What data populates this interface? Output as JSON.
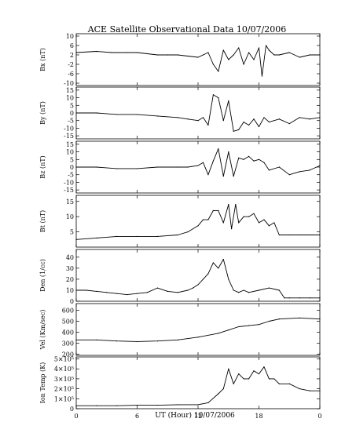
{
  "chart_data": {
    "type": "line",
    "title": "ACE Satellite Observational Data   10/07/2006",
    "xlabel": "UT (Hour)   10/07/2006",
    "xticks": [
      "0",
      "6",
      "12",
      "18",
      "0"
    ],
    "xlim": [
      0,
      24
    ],
    "panels": [
      {
        "ylabel": "Bx (nT)",
        "ylim": [
          -11,
          11
        ],
        "yticks": [
          "10",
          "6",
          "2",
          "-2",
          "-6",
          "-10"
        ],
        "ytick_values": [
          10,
          6,
          2,
          -2,
          -6,
          -10
        ],
        "x": [
          0,
          2,
          3.5,
          5,
          6,
          7,
          8,
          9,
          10,
          11,
          12,
          12.5,
          13,
          13.5,
          14,
          14.5,
          15,
          15.5,
          16,
          16.5,
          17,
          17.5,
          18,
          18.3,
          18.7,
          19,
          19.5,
          20,
          21,
          22,
          23,
          24
        ],
        "y": [
          3,
          3.5,
          3,
          3,
          3,
          2.5,
          2,
          2,
          2,
          1.5,
          1,
          2,
          3,
          -2,
          -5,
          4,
          0,
          2,
          5,
          -2,
          3,
          0,
          5,
          -7,
          6,
          4,
          2,
          2,
          3,
          1,
          2,
          2
        ]
      },
      {
        "ylabel": "By (nT)",
        "ylim": [
          -17,
          17
        ],
        "yticks": [
          "15",
          "10",
          "5",
          "0",
          "-5",
          "-10",
          "-15"
        ],
        "ytick_values": [
          15,
          10,
          5,
          0,
          -5,
          -10,
          -15
        ],
        "x": [
          0,
          2,
          4,
          6,
          8,
          10,
          11,
          12,
          12.5,
          13,
          13.5,
          14,
          14.5,
          15,
          15.5,
          16,
          16.5,
          17,
          17.5,
          18,
          18.5,
          19,
          20,
          21,
          22,
          23,
          24
        ],
        "y": [
          0,
          0,
          -1,
          -1,
          -2,
          -3,
          -4,
          -5,
          -3,
          -8,
          12,
          10,
          -5,
          8,
          -12,
          -11,
          -6,
          -8,
          -4,
          -9,
          -3,
          -6,
          -4,
          -7,
          -3,
          -4,
          -3
        ]
      },
      {
        "ylabel": "Bz (nT)",
        "ylim": [
          -17,
          17
        ],
        "yticks": [
          "15",
          "10",
          "5",
          "0",
          "-5",
          "-10",
          "-15"
        ],
        "ytick_values": [
          15,
          10,
          5,
          0,
          -5,
          -10,
          -15
        ],
        "x": [
          0,
          2,
          4,
          6,
          8,
          10,
          11,
          12,
          12.5,
          13,
          13.5,
          14,
          14.5,
          15,
          15.5,
          16,
          16.5,
          17,
          17.5,
          18,
          18.5,
          19,
          20,
          21,
          22,
          23,
          24
        ],
        "y": [
          0,
          0,
          -1,
          -1,
          0,
          0,
          0,
          1,
          3,
          -5,
          4,
          12,
          -6,
          10,
          -6,
          6,
          5,
          7,
          4,
          5,
          3,
          -2,
          0,
          -5,
          -3,
          -2,
          1
        ]
      },
      {
        "ylabel": "Bt (nT)",
        "ylim": [
          0,
          17
        ],
        "yticks": [
          "15",
          "10",
          "5"
        ],
        "ytick_values": [
          15,
          10,
          5
        ],
        "x": [
          0,
          2,
          4,
          6,
          8,
          10,
          11,
          12,
          12.5,
          13,
          13.5,
          14,
          14.5,
          15,
          15.3,
          15.7,
          16,
          16.5,
          17,
          17.5,
          18,
          18.5,
          19,
          19.5,
          20,
          21,
          22,
          23,
          24
        ],
        "y": [
          2.5,
          3,
          3.5,
          3.5,
          3.5,
          4,
          5,
          7,
          9,
          9,
          12,
          12,
          8,
          14,
          6,
          14,
          8,
          10,
          10,
          11,
          8,
          9,
          7,
          8,
          4,
          4,
          4,
          4,
          4
        ]
      },
      {
        "ylabel": "Den (1/cc)",
        "ylim": [
          0,
          47
        ],
        "yticks": [
          "40",
          "30",
          "20",
          "10",
          "0"
        ],
        "ytick_values": [
          40,
          30,
          20,
          10,
          0
        ],
        "x": [
          0,
          1,
          2,
          3,
          4,
          5,
          6,
          7,
          8,
          9,
          10,
          11,
          11.5,
          12,
          12.5,
          13,
          13.5,
          14,
          14.5,
          15,
          15.5,
          16,
          16.5,
          17,
          18,
          19,
          20,
          20.5,
          21,
          22,
          23,
          24
        ],
        "y": [
          10,
          10,
          9,
          8,
          7,
          6,
          7,
          8,
          12,
          9,
          8,
          10,
          12,
          15,
          20,
          25,
          35,
          30,
          38,
          20,
          10,
          8,
          10,
          8,
          10,
          12,
          10,
          3,
          3,
          3,
          3,
          3
        ]
      },
      {
        "ylabel": "Vel (Km/sec)",
        "ylim": [
          190,
          660
        ],
        "yticks": [
          "600",
          "500",
          "400",
          "300",
          "200"
        ],
        "ytick_values": [
          600,
          500,
          400,
          300,
          200
        ],
        "x": [
          0,
          2,
          4,
          6,
          8,
          10,
          12,
          14,
          15,
          16,
          17,
          18,
          19,
          20,
          22,
          24
        ],
        "y": [
          330,
          330,
          320,
          315,
          320,
          330,
          355,
          390,
          420,
          450,
          460,
          470,
          500,
          520,
          530,
          520
        ]
      },
      {
        "ylabel": "Ion Temp (K)",
        "ylim": [
          0,
          520000
        ],
        "yticks": [
          "5×10⁵",
          "4×10⁵",
          "3×10⁵",
          "2×10⁵",
          "1×10⁵",
          "0"
        ],
        "ytick_values": [
          500000,
          400000,
          300000,
          200000,
          100000,
          0
        ],
        "x": [
          0,
          2,
          4,
          6,
          8,
          10,
          12,
          13,
          14,
          14.5,
          15,
          15.5,
          16,
          16.5,
          17,
          17.5,
          18,
          18.5,
          19,
          19.5,
          20,
          21,
          22,
          23,
          24
        ],
        "y": [
          30000,
          30000,
          30000,
          35000,
          35000,
          40000,
          40000,
          60000,
          150000,
          200000,
          400000,
          250000,
          350000,
          300000,
          300000,
          380000,
          350000,
          420000,
          300000,
          300000,
          250000,
          250000,
          200000,
          180000,
          180000
        ]
      }
    ]
  }
}
